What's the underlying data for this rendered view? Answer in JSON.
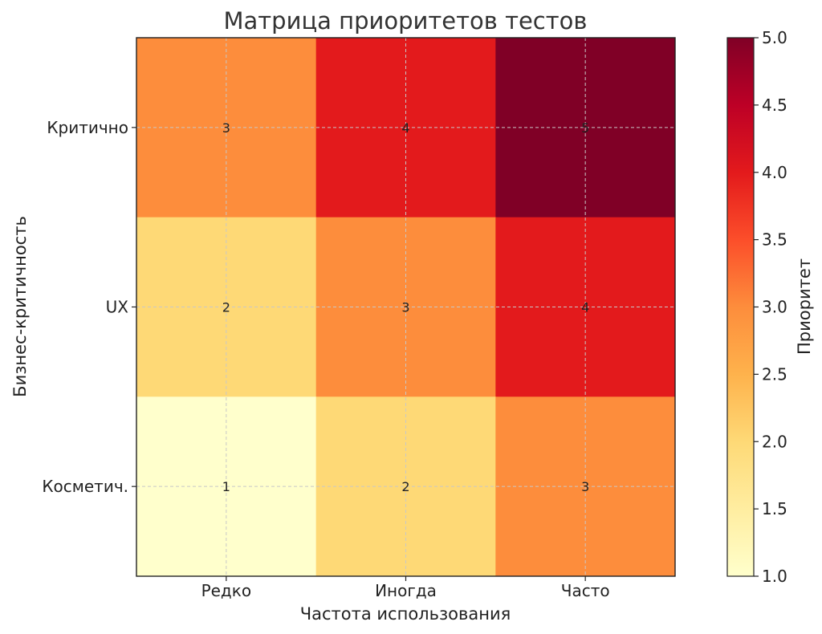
{
  "chart_data": {
    "type": "heatmap",
    "title": "Матрица приоритетов тестов",
    "xlabel": "Частота использования",
    "ylabel": "Бизнес-критичность",
    "x_categories": [
      "Редко",
      "Иногда",
      "Часто"
    ],
    "y_categories": [
      "Критично",
      "UX",
      "Косметич."
    ],
    "values": [
      [
        3,
        4,
        5
      ],
      [
        2,
        3,
        4
      ],
      [
        1,
        2,
        3
      ]
    ],
    "colorbar": {
      "label": "Приоритет",
      "min": 1.0,
      "max": 5.0,
      "ticks": [
        "1.0",
        "1.5",
        "2.0",
        "2.5",
        "3.0",
        "3.5",
        "4.0",
        "4.5",
        "5.0"
      ],
      "colormap": "YlOrRd"
    },
    "grid": true,
    "colors": {
      "1": "#ffffcc",
      "2": "#fed976",
      "3": "#fd8d3c",
      "4": "#e31a1c",
      "5": "#800026"
    }
  }
}
